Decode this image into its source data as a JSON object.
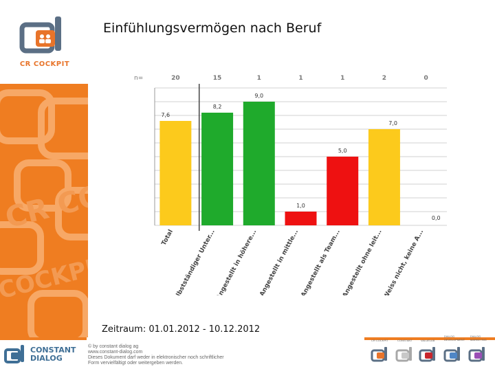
{
  "header": {
    "title": "Einfühlungsvermögen nach Beruf"
  },
  "sidebar": {
    "logo_text": "CR COCKPIT",
    "pattern_text": [
      "CR COC",
      "COCKPIT"
    ]
  },
  "period": "Zeitraum: 01.01.2012 - 10.12.2012",
  "footer": {
    "company_logo_text": [
      "CONSTANT",
      "DIALOG"
    ],
    "copyright_lines": [
      "© by constant dialog ag",
      "www.constant-dialog.com",
      "Dieses Dokument darf weder in elektronischer noch schriftlicher",
      "Form vervielfältigt oder weitergeben werden."
    ],
    "product_labels": [
      "CR COCKPIT",
      "CONSTANT",
      "VALUELAB",
      "DIALOG DEVELOPMENT",
      "DIALOG MARKETING"
    ]
  },
  "chart_data": {
    "type": "bar",
    "title": "Einfühlungsvermögen nach Beruf",
    "n_label": "n=",
    "categories": [
      "Total",
      "selbstständiger Unter...",
      "Angestellt in höhere...",
      "Angestellt in mittle...",
      "Angestellt als Team...",
      "Angestellt ohne leit...",
      "Weiss nicht, keine A..."
    ],
    "n": [
      "20",
      "15",
      "1",
      "1",
      "1",
      "2",
      "0"
    ],
    "values": [
      7.6,
      8.2,
      9.0,
      1.0,
      5.0,
      7.0,
      0.0
    ],
    "value_labels": [
      "7,6",
      "8,2",
      "9,0",
      "1,0",
      "5,0",
      "7,0",
      "0,0"
    ],
    "colors": [
      "#fcca1c",
      "#1faa2c",
      "#1faa2c",
      "#ee1111",
      "#ee1111",
      "#fcca1c",
      "#fcca1c"
    ],
    "ylim": [
      0,
      10
    ],
    "grid": true,
    "xlabel": "",
    "ylabel": ""
  }
}
